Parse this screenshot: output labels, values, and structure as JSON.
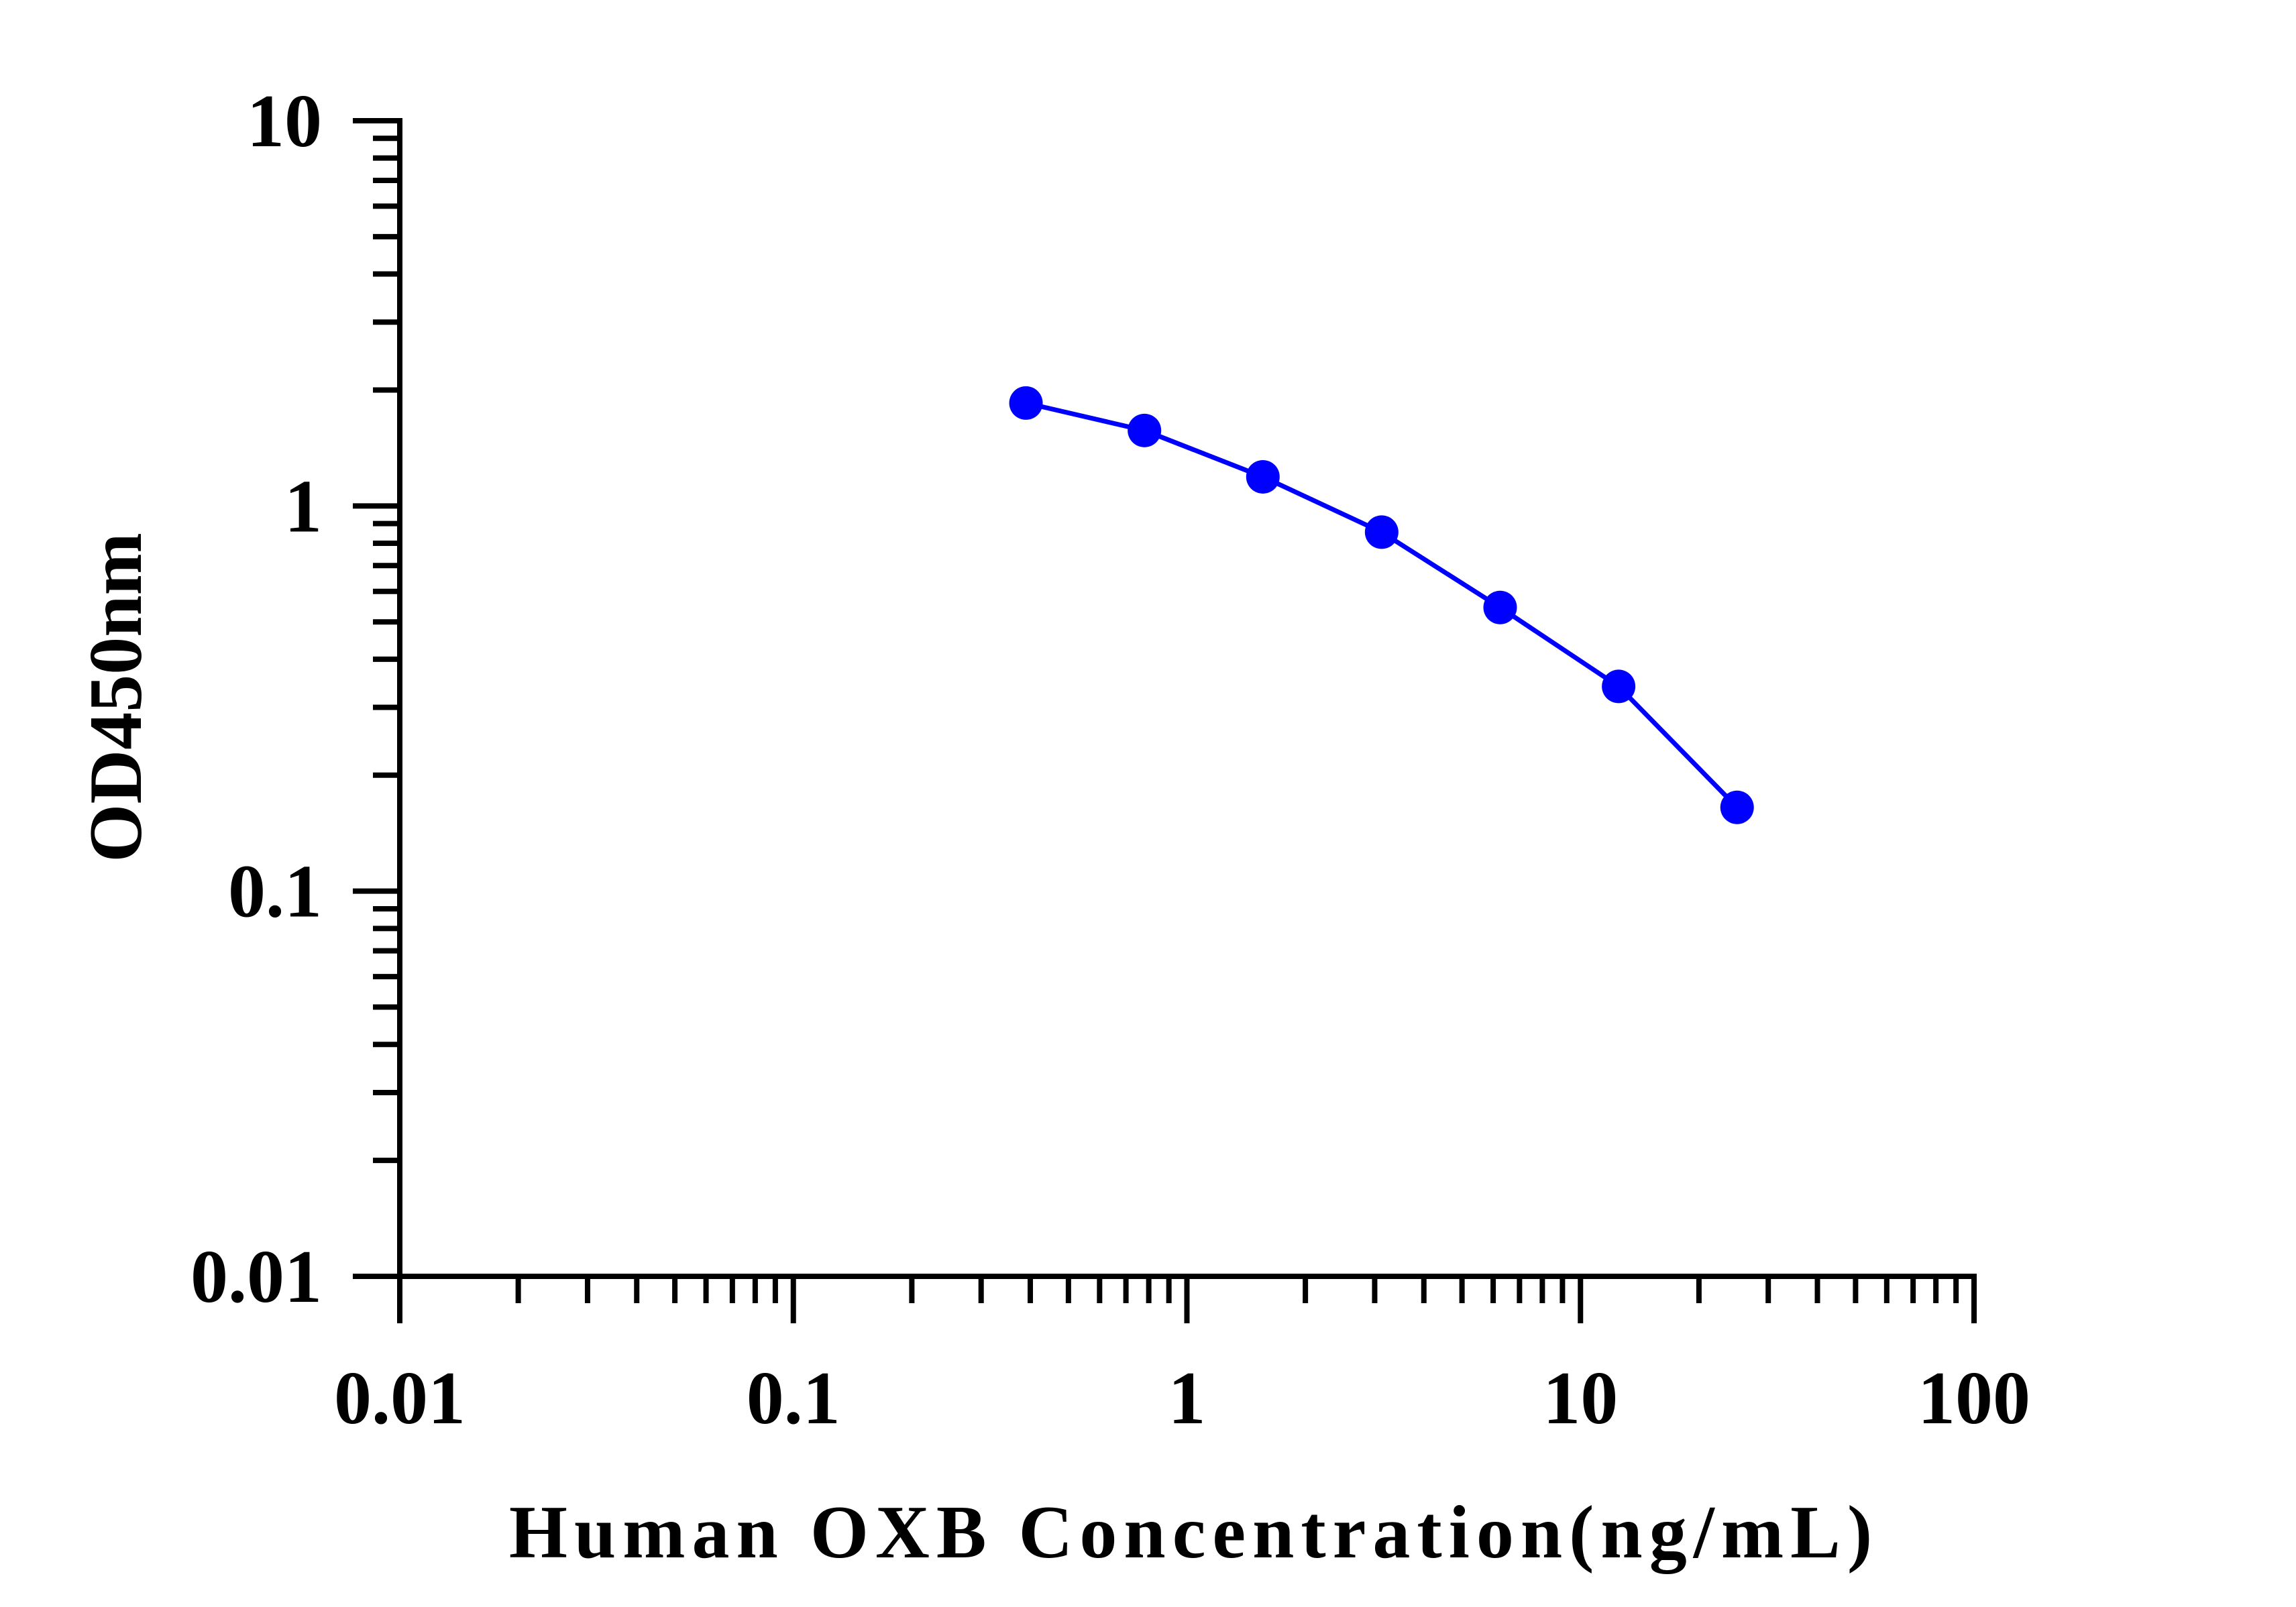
{
  "chart_data": {
    "type": "line",
    "title": "",
    "xlabel": "Human OXB Concentration(ng/mL)",
    "ylabel": "OD450nm",
    "x_scale": "log",
    "y_scale": "log",
    "xlim": [
      0.01,
      100
    ],
    "ylim": [
      0.01,
      10
    ],
    "x_tick_labels": [
      "0.01",
      "0.1",
      "1",
      "10",
      "100"
    ],
    "y_tick_labels": [
      "0.01",
      "0.1",
      "1",
      "10"
    ],
    "x_tick_values": [
      0.01,
      0.1,
      1,
      10,
      100
    ],
    "y_tick_values": [
      0.01,
      0.1,
      1,
      10
    ],
    "grid": false,
    "legend": "none",
    "series": [
      {
        "color": "#0000ff",
        "marker": "circle",
        "x": [
          0.39,
          0.78,
          1.56,
          3.125,
          6.25,
          12.5,
          25
        ],
        "y": [
          1.85,
          1.57,
          1.19,
          0.855,
          0.545,
          0.34,
          0.165
        ]
      }
    ]
  }
}
